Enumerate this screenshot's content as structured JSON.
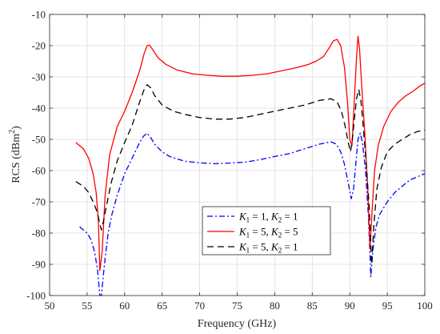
{
  "chart_data": {
    "type": "line",
    "xlabel": "Frequency (GHz)",
    "ylabel_main": "RCS (dBm",
    "ylabel_sup": "2",
    "ylabel_close": ")",
    "xlim": [
      50,
      100
    ],
    "ylim": [
      -100,
      -10
    ],
    "xticks": [
      50,
      55,
      60,
      65,
      70,
      75,
      80,
      85,
      90,
      95,
      100
    ],
    "yticks": [
      -100,
      -90,
      -80,
      -70,
      -60,
      -50,
      -40,
      -30,
      -20,
      -10
    ],
    "grid": true,
    "legend_placement": "lower-center",
    "series": [
      {
        "legend_k1": "1",
        "legend_k2": "1",
        "color": "#0000ff",
        "dash": "7,3,2,3",
        "x": [
          54,
          55,
          55.5,
          56,
          56.4,
          56.7,
          56.9,
          57.1,
          57.4,
          57.8,
          58.3,
          59,
          60,
          61,
          62,
          62.5,
          63,
          63.5,
          64,
          65,
          66,
          68,
          70,
          72,
          74,
          76,
          78,
          80,
          82,
          84,
          86,
          87.5,
          88.2,
          88.8,
          89.3,
          89.8,
          90.2,
          90.5,
          90.8,
          91.1,
          91.4,
          91.7,
          92.1,
          92.5,
          92.8,
          93.1,
          93.5,
          94,
          95,
          96,
          97,
          98,
          99,
          100
        ],
        "y": [
          -78,
          -80,
          -82,
          -86,
          -92,
          -100,
          -100,
          -95,
          -88,
          -80,
          -74,
          -68,
          -61,
          -56,
          -51,
          -49,
          -48,
          -49.5,
          -51.5,
          -54,
          -55.5,
          -57,
          -57.5,
          -57.8,
          -57.6,
          -57.3,
          -56.5,
          -55.5,
          -54.5,
          -53,
          -51.5,
          -50.8,
          -51.5,
          -54,
          -58,
          -64,
          -69,
          -66,
          -58,
          -50,
          -48,
          -51,
          -60,
          -75,
          -94,
          -85,
          -78,
          -74,
          -70,
          -67,
          -65,
          -63,
          -62,
          -61
        ]
      },
      {
        "legend_k1": "5",
        "legend_k2": "5",
        "color": "#ff0000",
        "dash": "",
        "x": [
          53.5,
          54.5,
          55.2,
          55.8,
          56.2,
          56.5,
          56.7,
          57,
          57.4,
          58,
          59,
          60,
          61,
          62,
          62.6,
          63,
          63.3,
          63.8,
          64.5,
          65.5,
          67,
          69,
          71,
          73,
          75,
          77,
          79,
          81,
          83,
          84.5,
          85.5,
          86.5,
          87.3,
          87.8,
          88.3,
          88.8,
          89.3,
          89.7,
          90,
          90.3,
          90.6,
          90.9,
          91.1,
          91.3,
          91.6,
          92,
          92.4,
          92.7,
          93,
          93.3,
          93.8,
          94.5,
          95.5,
          96.5,
          97.5,
          98.5,
          99.3,
          100
        ],
        "y": [
          -51,
          -53,
          -56,
          -61,
          -67,
          -76,
          -92,
          -86,
          -68,
          -55,
          -46,
          -41,
          -35,
          -28,
          -22.5,
          -20,
          -19.8,
          -21.5,
          -24,
          -26,
          -27.8,
          -29,
          -29.5,
          -29.8,
          -29.8,
          -29.5,
          -29,
          -28,
          -27,
          -26,
          -25,
          -23.5,
          -20.5,
          -18.5,
          -18,
          -20,
          -27,
          -38,
          -50,
          -52,
          -38,
          -24,
          -17,
          -21,
          -33,
          -48,
          -66,
          -85,
          -72,
          -60,
          -52,
          -46,
          -41,
          -38,
          -36,
          -34.5,
          -33,
          -32
        ]
      },
      {
        "legend_k1": "5",
        "legend_k2": "1",
        "color": "#000000",
        "dash": "8,5",
        "x": [
          53.5,
          54.5,
          55.2,
          55.8,
          56.3,
          56.6,
          56.9,
          57.2,
          57.6,
          58.2,
          59,
          60,
          61,
          62,
          62.6,
          63,
          63.5,
          64,
          65,
          66.5,
          68,
          70,
          72,
          74,
          76,
          78,
          80,
          82,
          84,
          86,
          87.5,
          88.3,
          88.9,
          89.4,
          89.8,
          90.1,
          90.3,
          90.6,
          90.9,
          91.2,
          91.5,
          91.8,
          92.2,
          92.6,
          92.9,
          93.2,
          93.6,
          94.2,
          95,
          96,
          97,
          98,
          99,
          100
        ],
        "y": [
          -63.5,
          -65,
          -67,
          -70,
          -73,
          -76,
          -79,
          -76,
          -71,
          -64,
          -57,
          -51,
          -45.5,
          -38,
          -34,
          -32.5,
          -33.5,
          -36,
          -39,
          -41,
          -42,
          -43,
          -43.5,
          -43.5,
          -43,
          -42,
          -41,
          -40,
          -39,
          -37.5,
          -37,
          -38,
          -41,
          -46,
          -51,
          -54,
          -51,
          -44,
          -37,
          -34,
          -38,
          -46,
          -58,
          -72,
          -90,
          -78,
          -66,
          -59,
          -54,
          -51.5,
          -50,
          -48.5,
          -47.5,
          -47
        ]
      }
    ]
  }
}
